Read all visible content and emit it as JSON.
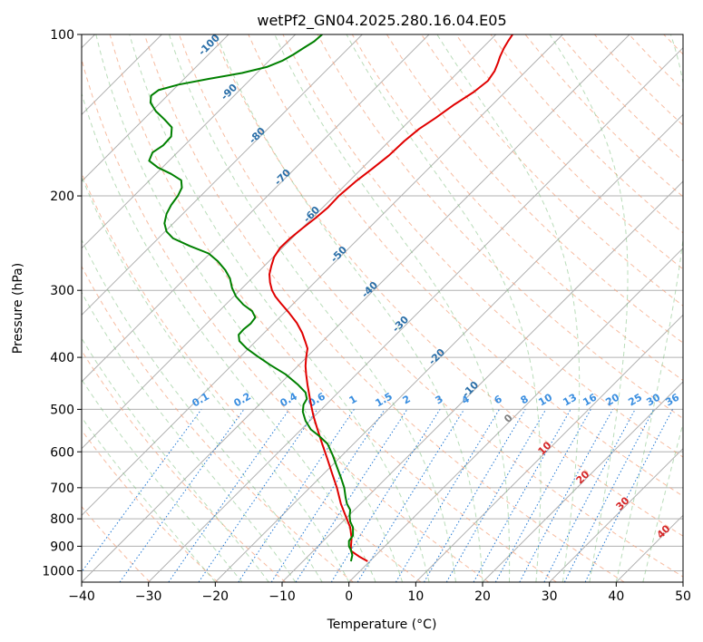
{
  "chart_data": {
    "type": "line",
    "title": "wetPf2_GN04.2025.280.16.04.E05",
    "xlabel": "Temperature (°C)",
    "ylabel": "Pressure (hPa)",
    "xlim": [
      -40,
      50
    ],
    "ylim": [
      1050,
      100
    ],
    "y_scale": "log",
    "x_ticks": [
      -40,
      -30,
      -20,
      -10,
      0,
      10,
      20,
      30,
      40,
      50
    ],
    "x_tick_labels": [
      "−40",
      "−30",
      "−20",
      "−10",
      "0",
      "10",
      "20",
      "30",
      "40",
      "50"
    ],
    "y_ticks": [
      1000,
      900,
      800,
      700,
      600,
      500,
      400,
      300,
      200,
      100
    ],
    "y_tick_labels": [
      "1000",
      "900",
      "800",
      "700",
      "600",
      "500",
      "400",
      "300",
      "200",
      "100"
    ],
    "grid": true,
    "skew": 1,
    "series": [
      {
        "role": "temperature",
        "color": "#e00000",
        "points": [
          [
            2.8,
            960
          ],
          [
            1.5,
            940
          ],
          [
            0.3,
            918
          ],
          [
            0.3,
            900
          ],
          [
            0.4,
            870
          ],
          [
            0.2,
            830
          ],
          [
            -0.5,
            790
          ],
          [
            -1.2,
            750
          ],
          [
            -1.8,
            700
          ],
          [
            -2.5,
            660
          ],
          [
            -3.2,
            620
          ],
          [
            -3.8,
            590
          ],
          [
            -4.2,
            570
          ],
          [
            -4.8,
            540
          ],
          [
            -5.3,
            515
          ],
          [
            -5.6,
            495
          ],
          [
            -5.8,
            480
          ],
          [
            -6.0,
            465
          ],
          [
            -6.2,
            450
          ],
          [
            -6.4,
            430
          ],
          [
            -6.5,
            415
          ],
          [
            -6.4,
            400
          ],
          [
            -6.2,
            385
          ],
          [
            -6.5,
            375
          ],
          [
            -7.0,
            360
          ],
          [
            -7.8,
            345
          ],
          [
            -9.0,
            330
          ],
          [
            -10.2,
            317
          ],
          [
            -11.0,
            308
          ],
          [
            -11.5,
            300
          ],
          [
            -11.8,
            290
          ],
          [
            -11.9,
            280
          ],
          [
            -11.6,
            270
          ],
          [
            -11.2,
            260
          ],
          [
            -10.3,
            250
          ],
          [
            -8.8,
            240
          ],
          [
            -7.0,
            230
          ],
          [
            -5.0,
            220
          ],
          [
            -3.1,
            210
          ],
          [
            -1.5,
            200
          ],
          [
            1.0,
            188
          ],
          [
            3.5,
            178
          ],
          [
            6.0,
            168
          ],
          [
            8.3,
            158
          ],
          [
            10.5,
            150
          ],
          [
            13.0,
            143
          ],
          [
            15.8,
            135
          ],
          [
            18.7,
            128
          ],
          [
            20.8,
            122
          ],
          [
            21.8,
            117
          ],
          [
            22.3,
            113
          ],
          [
            22.6,
            110
          ],
          [
            23.2,
            106
          ],
          [
            23.8,
            103
          ],
          [
            24.5,
            100
          ]
        ]
      },
      {
        "role": "dewpoint",
        "color": "#008000",
        "points": [
          [
            0.3,
            960
          ],
          [
            0.5,
            935
          ],
          [
            0.3,
            915
          ],
          [
            0.0,
            900
          ],
          [
            0.0,
            880
          ],
          [
            0.6,
            860
          ],
          [
            0.6,
            830
          ],
          [
            0.2,
            810
          ],
          [
            0.1,
            790
          ],
          [
            0.2,
            770
          ],
          [
            -0.3,
            750
          ],
          [
            -0.5,
            730
          ],
          [
            -0.7,
            700
          ],
          [
            -1.2,
            670
          ],
          [
            -1.8,
            640
          ],
          [
            -2.4,
            610
          ],
          [
            -3.2,
            580
          ],
          [
            -4.5,
            560
          ],
          [
            -5.7,
            545
          ],
          [
            -6.5,
            525
          ],
          [
            -6.9,
            505
          ],
          [
            -6.8,
            490
          ],
          [
            -6.3,
            478
          ],
          [
            -6.5,
            465
          ],
          [
            -7.6,
            450
          ],
          [
            -9.5,
            430
          ],
          [
            -11.8,
            413
          ],
          [
            -13.7,
            398
          ],
          [
            -15.3,
            385
          ],
          [
            -16.4,
            373
          ],
          [
            -16.5,
            363
          ],
          [
            -15.8,
            355
          ],
          [
            -14.7,
            346
          ],
          [
            -14.0,
            337
          ],
          [
            -14.5,
            328
          ],
          [
            -15.8,
            319
          ],
          [
            -16.9,
            308
          ],
          [
            -17.5,
            297
          ],
          [
            -17.8,
            285
          ],
          [
            -18.5,
            275
          ],
          [
            -19.6,
            265
          ],
          [
            -21.0,
            256
          ],
          [
            -23.8,
            248
          ],
          [
            -26.3,
            240
          ],
          [
            -27.3,
            233
          ],
          [
            -27.6,
            225
          ],
          [
            -27.3,
            216
          ],
          [
            -26.6,
            208
          ],
          [
            -25.6,
            200
          ],
          [
            -25.0,
            193
          ],
          [
            -25.1,
            187
          ],
          [
            -26.6,
            182
          ],
          [
            -28.6,
            177
          ],
          [
            -29.9,
            172
          ],
          [
            -29.4,
            166
          ],
          [
            -27.8,
            161
          ],
          [
            -26.6,
            155
          ],
          [
            -26.5,
            149
          ],
          [
            -27.6,
            144
          ],
          [
            -28.9,
            139
          ],
          [
            -29.7,
            134
          ],
          [
            -29.6,
            130
          ],
          [
            -28.5,
            127
          ],
          [
            -25.5,
            124
          ],
          [
            -21.0,
            121
          ],
          [
            -16.0,
            118
          ],
          [
            -12.3,
            115
          ],
          [
            -10.0,
            112
          ],
          [
            -8.3,
            109
          ],
          [
            -6.8,
            106
          ],
          [
            -5.2,
            103
          ],
          [
            -4.0,
            100
          ]
        ]
      }
    ],
    "dry_adiabat_labels": [
      "-100",
      "-90",
      "-80",
      "-70",
      "-60",
      "-50",
      "-40",
      "-30",
      "-20",
      "-10"
    ],
    "mixing_ratio_labels": [
      "0.1",
      "0.2",
      "0.4",
      "0.6",
      "1",
      "1.5",
      "2",
      "3",
      "4",
      "6",
      "8",
      "10",
      "13",
      "16",
      "20",
      "25",
      "30",
      "36"
    ],
    "moist_adiabat_labels": [
      "0",
      "10",
      "20",
      "30",
      "40"
    ]
  }
}
